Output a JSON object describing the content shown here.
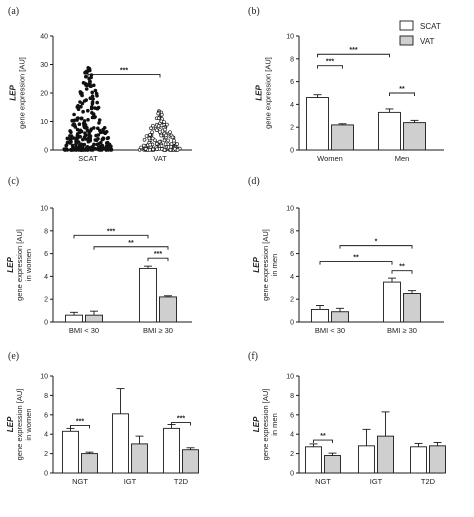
{
  "colors": {
    "scat_fill": "#ffffff",
    "vat_fill": "#cfcfcf",
    "stroke": "#1a1a1a"
  },
  "legend": {
    "items": [
      "SCAT",
      "VAT"
    ]
  },
  "chart_data": [
    {
      "panel": "(a)",
      "type": "scatter",
      "ylabel_italic": "LEP",
      "ylabel_rest": [
        "gene expression [AU]"
      ],
      "ylim": [
        0,
        40
      ],
      "yticks": [
        0,
        10,
        20,
        30,
        40
      ],
      "categories": [
        "SCAT",
        "VAT"
      ],
      "series": [
        {
          "name": "SCAT",
          "values_range": [
            0,
            31
          ]
        },
        {
          "name": "VAT",
          "values_range": [
            0,
            14
          ]
        }
      ],
      "comparisons": [
        {
          "from": 0,
          "to": 1,
          "label": "***"
        }
      ]
    },
    {
      "panel": "(b)",
      "type": "bar",
      "ylabel_italic": "LEP",
      "ylabel_rest": [
        "gene expression [AU]"
      ],
      "ylim": [
        0,
        10
      ],
      "yticks": [
        0,
        2,
        4,
        6,
        8,
        10
      ],
      "categories": [
        "Women",
        "Men"
      ],
      "legend": true,
      "series": [
        {
          "name": "SCAT",
          "values": [
            4.6,
            3.3
          ],
          "errors": [
            0.25,
            0.3
          ]
        },
        {
          "name": "VAT",
          "values": [
            2.2,
            2.4
          ],
          "errors": [
            0.1,
            0.2
          ]
        }
      ],
      "comparisons": [
        {
          "from": [
            0,
            0
          ],
          "to": [
            1,
            0
          ],
          "y": 8.4,
          "label": "***"
        },
        {
          "from": [
            0,
            0
          ],
          "to": [
            0,
            1
          ],
          "y": 7.4,
          "label": "***"
        },
        {
          "from": [
            1,
            0
          ],
          "to": [
            1,
            1
          ],
          "y": 5.0,
          "label": "**"
        }
      ]
    },
    {
      "panel": "(c)",
      "type": "bar",
      "ylabel_italic": "LEP",
      "ylabel_rest": [
        "gene expression [AU]",
        "in women"
      ],
      "ylim": [
        0,
        10
      ],
      "yticks": [
        0,
        2,
        4,
        6,
        8,
        10
      ],
      "categories": [
        "BMI < 30",
        "BMI ≥ 30"
      ],
      "series": [
        {
          "name": "SCAT",
          "values": [
            0.6,
            4.7
          ],
          "errors": [
            0.25,
            0.2
          ]
        },
        {
          "name": "VAT",
          "values": [
            0.6,
            2.2
          ],
          "errors": [
            0.35,
            0.1
          ]
        }
      ],
      "comparisons": [
        {
          "from": [
            0,
            0
          ],
          "to": [
            1,
            0
          ],
          "y": 7.6,
          "label": "***"
        },
        {
          "from": [
            0,
            1
          ],
          "to": [
            1,
            1
          ],
          "y": 6.6,
          "label": "**"
        },
        {
          "from": [
            1,
            0
          ],
          "to": [
            1,
            1
          ],
          "y": 5.6,
          "label": "***"
        }
      ]
    },
    {
      "panel": "(d)",
      "type": "bar",
      "ylabel_italic": "LEP",
      "ylabel_rest": [
        "gene expression [AU]",
        "in men"
      ],
      "ylim": [
        0,
        10
      ],
      "yticks": [
        0,
        2,
        4,
        6,
        8,
        10
      ],
      "categories": [
        "BMI < 30",
        "BMI ≥ 30"
      ],
      "series": [
        {
          "name": "SCAT",
          "values": [
            1.1,
            3.5
          ],
          "errors": [
            0.35,
            0.35
          ]
        },
        {
          "name": "VAT",
          "values": [
            0.9,
            2.5
          ],
          "errors": [
            0.3,
            0.25
          ]
        }
      ],
      "comparisons": [
        {
          "from": [
            0,
            1
          ],
          "to": [
            1,
            1
          ],
          "y": 6.7,
          "label": "*"
        },
        {
          "from": [
            0,
            0
          ],
          "to": [
            1,
            0
          ],
          "y": 5.3,
          "label": "**"
        },
        {
          "from": [
            1,
            0
          ],
          "to": [
            1,
            1
          ],
          "y": 4.5,
          "label": "**"
        }
      ]
    },
    {
      "panel": "(e)",
      "type": "bar",
      "ylabel_italic": "LEP",
      "ylabel_rest": [
        "gene expression [AU]",
        "in women"
      ],
      "ylim": [
        0,
        10
      ],
      "yticks": [
        0,
        2,
        4,
        6,
        8,
        10
      ],
      "categories": [
        "NGT",
        "IGT",
        "T2D"
      ],
      "series": [
        {
          "name": "SCAT",
          "values": [
            4.3,
            6.1,
            4.6
          ],
          "errors": [
            0.3,
            2.6,
            0.4
          ]
        },
        {
          "name": "VAT",
          "values": [
            2.0,
            3.0,
            2.4
          ],
          "errors": [
            0.15,
            0.8,
            0.2
          ]
        }
      ],
      "comparisons": [
        {
          "from": [
            0,
            0
          ],
          "to": [
            0,
            1
          ],
          "y": 4.9,
          "label": "***"
        },
        {
          "from": [
            2,
            0
          ],
          "to": [
            2,
            1
          ],
          "y": 5.2,
          "label": "***"
        }
      ]
    },
    {
      "panel": "(f)",
      "type": "bar",
      "ylabel_italic": "LEP",
      "ylabel_rest": [
        "gene expression [AU]",
        "in men"
      ],
      "ylim": [
        0,
        10
      ],
      "yticks": [
        0,
        2,
        4,
        6,
        8,
        10
      ],
      "categories": [
        "NGT",
        "IGT",
        "T2D"
      ],
      "series": [
        {
          "name": "SCAT",
          "values": [
            2.7,
            2.8,
            2.7
          ],
          "errors": [
            0.3,
            1.7,
            0.35
          ]
        },
        {
          "name": "VAT",
          "values": [
            1.8,
            3.8,
            2.8
          ],
          "errors": [
            0.25,
            2.5,
            0.35
          ]
        }
      ],
      "comparisons": [
        {
          "from": [
            0,
            0
          ],
          "to": [
            0,
            1
          ],
          "y": 3.4,
          "label": "**"
        }
      ]
    }
  ]
}
